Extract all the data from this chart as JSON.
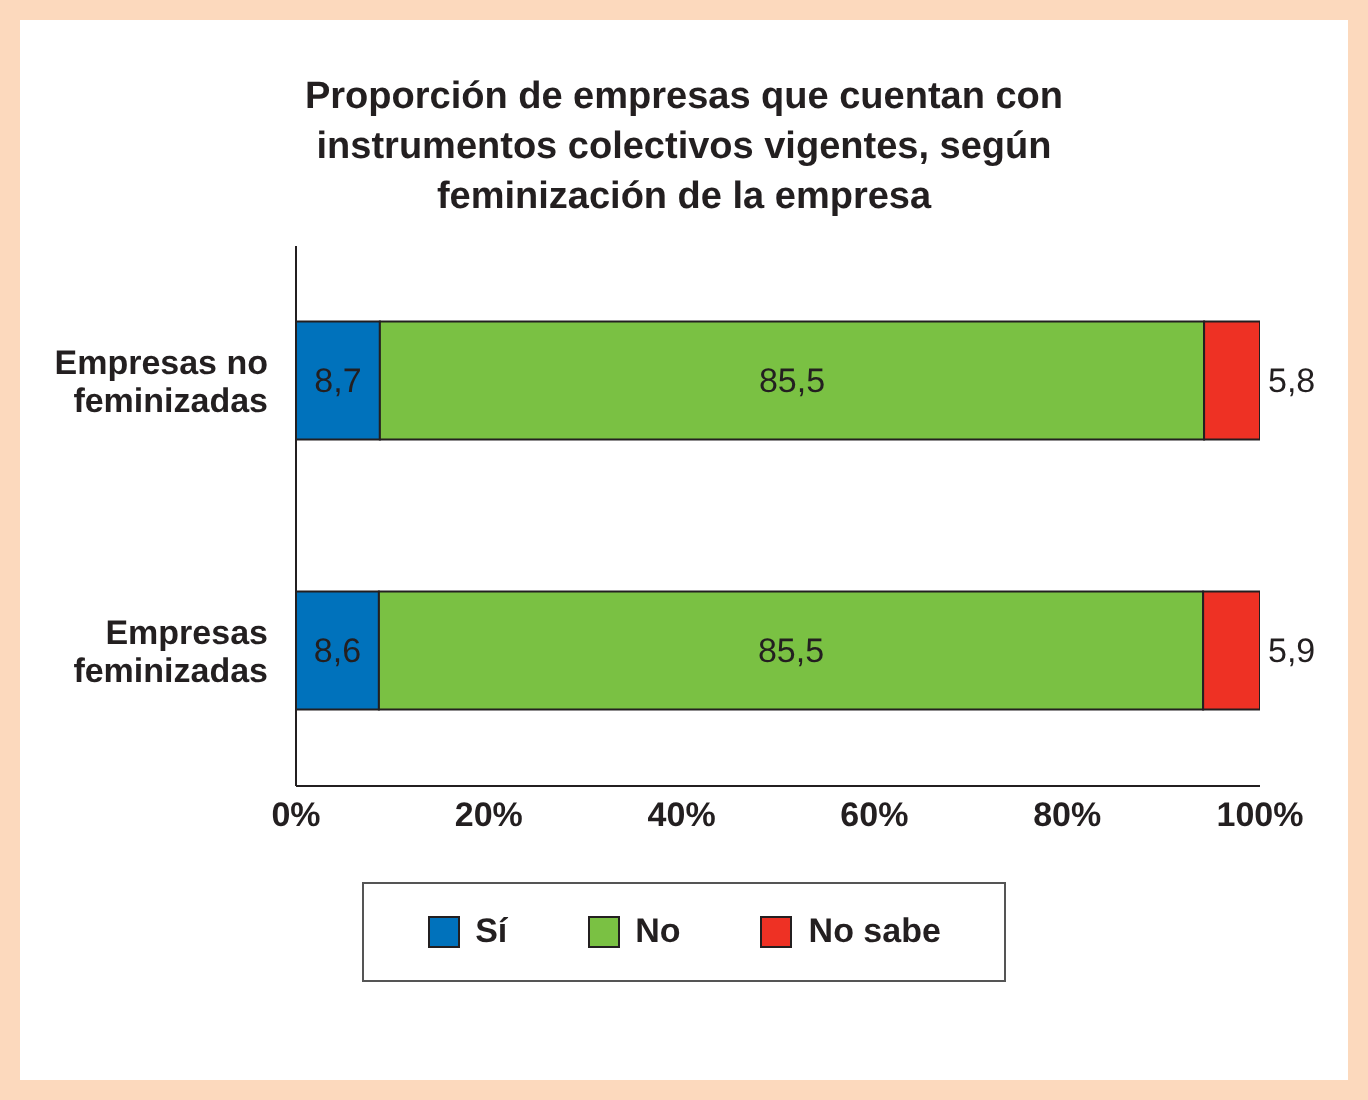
{
  "chart_data": {
    "type": "bar",
    "orientation": "horizontal",
    "stacked": true,
    "title": "Proporción de empresas que cuentan con instrumentos colectivos vigentes, según feminización de la empresa",
    "categories": [
      "Empresas no feminizadas",
      "Empresas feminizadas"
    ],
    "series": [
      {
        "name": "Sí",
        "color": "#0072bc",
        "values": [
          8.7,
          8.6
        ],
        "value_labels": [
          "8,7",
          "8,6"
        ]
      },
      {
        "name": "No",
        "color": "#7ac143",
        "values": [
          85.5,
          85.5
        ],
        "value_labels": [
          "85,5",
          "85,5"
        ]
      },
      {
        "name": "No sabe",
        "color": "#ee3124",
        "values": [
          5.8,
          5.9
        ],
        "value_labels": [
          "5,8",
          "5,9"
        ]
      }
    ],
    "xlim": [
      0,
      100
    ],
    "xticks": [
      {
        "value": 0,
        "label": "0%"
      },
      {
        "value": 20,
        "label": "20%"
      },
      {
        "value": 40,
        "label": "40%"
      },
      {
        "value": 60,
        "label": "60%"
      },
      {
        "value": 80,
        "label": "80%"
      },
      {
        "value": 100,
        "label": "100%"
      }
    ],
    "legend": "bottom",
    "grid": false
  }
}
